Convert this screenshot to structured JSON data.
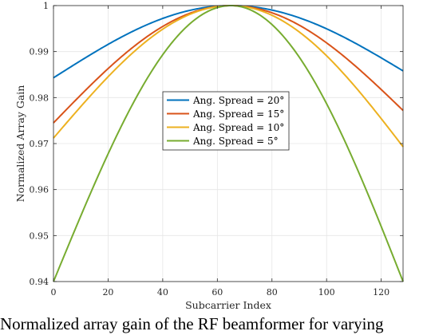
{
  "caption": "Normalized array gain of the RF beamformer for varying",
  "chart_data": {
    "type": "line",
    "title": "",
    "xlabel": "Subcarrier Index",
    "ylabel": "Normalized Array Gain",
    "xlim": [
      0,
      128
    ],
    "ylim": [
      0.94,
      1
    ],
    "xticks": [
      0,
      20,
      40,
      60,
      80,
      100,
      120
    ],
    "yticks": [
      0.94,
      0.95,
      0.96,
      0.97,
      0.98,
      0.99,
      1
    ],
    "ytick_labels": [
      "0.94",
      "0.95",
      "0.96",
      "0.97",
      "0.98",
      "0.99",
      "1"
    ],
    "grid": true,
    "legend_position": "center-left",
    "peak_x": 65,
    "series": [
      {
        "name": "Ang. Spread = 20°",
        "color": "#0072BD",
        "y_at_x0": 0.9843,
        "y_at_x128": 0.9858
      },
      {
        "name": "Ang. Spread = 15°",
        "color": "#D95319",
        "y_at_x0": 0.9745,
        "y_at_x128": 0.9772
      },
      {
        "name": "Ang. Spread = 10°",
        "color": "#EDB120",
        "y_at_x0": 0.9712,
        "y_at_x128": 0.9693
      },
      {
        "name": "Ang. Spread = 5°",
        "color": "#77AC30",
        "y_at_x0": 0.94,
        "y_at_x128": 0.94
      }
    ]
  }
}
